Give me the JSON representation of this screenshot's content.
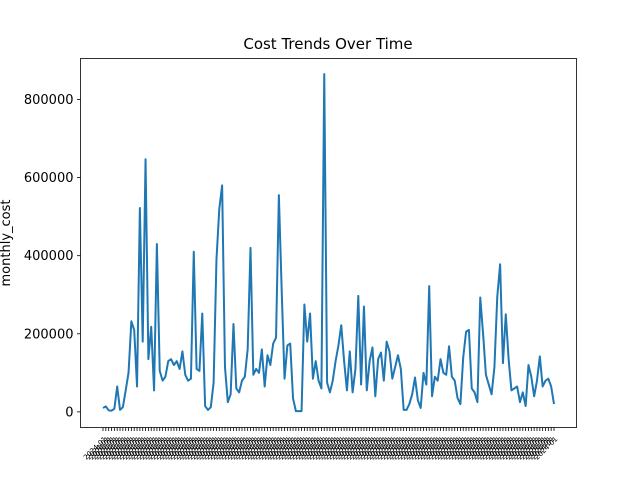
{
  "chart_data": {
    "type": "line",
    "title": "Cost Trends Over Time",
    "xlabel": "",
    "ylabel": "monthly_cost",
    "ylim": [
      -40000,
      905000
    ],
    "yticks": [
      0,
      200000,
      400000,
      600000,
      800000
    ],
    "ytick_labels": [
      "0",
      "200000",
      "400000",
      "600000",
      "800000"
    ],
    "xtick_rotation": "45",
    "xtick_label_text": "2024-01",
    "grid": false,
    "legend": "none",
    "line_color": "#1f77b4",
    "series": [
      {
        "values": [
          10000,
          14000,
          4000,
          3000,
          8000,
          65000,
          5000,
          12000,
          55000,
          100000,
          232000,
          210000,
          65000,
          522000,
          180000,
          647000,
          135000,
          218000,
          55000,
          430000,
          105000,
          80000,
          90000,
          130000,
          135000,
          120000,
          130000,
          110000,
          155000,
          95000,
          80000,
          85000,
          410000,
          110000,
          105000,
          252000,
          15000,
          5000,
          12000,
          75000,
          390000,
          520000,
          580000,
          115000,
          25000,
          45000,
          225000,
          60000,
          50000,
          80000,
          90000,
          160000,
          420000,
          95000,
          110000,
          100000,
          160000,
          65000,
          145000,
          120000,
          175000,
          190000,
          555000,
          310000,
          85000,
          170000,
          175000,
          35000,
          2000,
          2000,
          2000,
          275000,
          180000,
          252000,
          85000,
          130000,
          80000,
          60000,
          865000,
          75000,
          50000,
          80000,
          130000,
          170000,
          222000,
          130000,
          55000,
          155000,
          50000,
          110000,
          297000,
          70000,
          270000,
          55000,
          130000,
          165000,
          40000,
          135000,
          152000,
          80000,
          180000,
          155000,
          85000,
          115000,
          145000,
          110000,
          5000,
          5000,
          20000,
          45000,
          88000,
          30000,
          10000,
          100000,
          70000,
          322000,
          40000,
          90000,
          80000,
          135000,
          100000,
          95000,
          168000,
          90000,
          80000,
          35000,
          20000,
          140000,
          205000,
          210000,
          60000,
          50000,
          25000,
          293000,
          200000,
          95000,
          70000,
          45000,
          115000,
          295000,
          378000,
          125000,
          250000,
          135000,
          55000,
          60000,
          65000,
          25000,
          50000,
          15000,
          120000,
          90000,
          40000,
          80000,
          142000,
          65000,
          80000,
          85000,
          65000,
          20000
        ]
      }
    ]
  }
}
